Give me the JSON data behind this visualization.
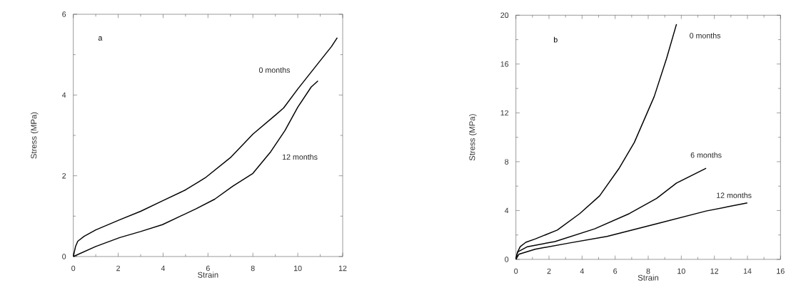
{
  "chart_data": [
    {
      "type": "line",
      "xlabel": "Strain",
      "ylabel": "Stress (MPa)",
      "annotations": [
        "a"
      ],
      "xlim": [
        0,
        12
      ],
      "ylim": [
        0,
        6
      ],
      "xticks": [
        0,
        2,
        4,
        6,
        8,
        10,
        12
      ],
      "yticks": [
        0,
        2,
        4,
        6
      ],
      "series": [
        {
          "name": "0 months",
          "color": "#000000",
          "x": [
            0,
            0.1,
            0.2,
            0.48,
            1,
            2.07,
            3,
            3.97,
            5,
            5.88,
            7,
            8.0,
            9.0,
            9.37,
            10,
            10.5,
            11,
            11.5,
            11.76
          ],
          "values": [
            0,
            0.25,
            0.38,
            0.5,
            0.66,
            0.91,
            1.12,
            1.38,
            1.65,
            1.95,
            2.45,
            3.03,
            3.5,
            3.68,
            4.15,
            4.5,
            4.85,
            5.2,
            5.42
          ]
        },
        {
          "name": "12 months",
          "color": "#000000",
          "x": [
            0,
            1,
            2.07,
            3,
            3.97,
            5.46,
            6.3,
            7.1,
            8.0,
            8.8,
            9.43,
            10,
            10.6,
            10.9
          ],
          "values": [
            0,
            0.25,
            0.47,
            0.62,
            0.79,
            1.18,
            1.42,
            1.74,
            2.06,
            2.6,
            3.12,
            3.7,
            4.2,
            4.35
          ]
        }
      ]
    },
    {
      "type": "line",
      "xlabel": "Strain",
      "ylabel": "Stress (MPa)",
      "annotations": [
        "b"
      ],
      "xlim": [
        0,
        16
      ],
      "ylim": [
        0,
        20
      ],
      "xticks": [
        0,
        2,
        4,
        6,
        8,
        10,
        12,
        14,
        16
      ],
      "yticks": [
        0,
        4,
        8,
        12,
        16,
        20
      ],
      "series": [
        {
          "name": "0 months",
          "color": "#000000",
          "x": [
            0,
            0.1,
            0.26,
            0.6,
            1.16,
            2.5,
            3.86,
            5.06,
            6.26,
            7.16,
            8.36,
            9.11,
            9.71
          ],
          "values": [
            0,
            0.6,
            1.04,
            1.4,
            1.67,
            2.4,
            3.75,
            5.2,
            7.5,
            9.58,
            13.33,
            16.46,
            19.27
          ]
        },
        {
          "name": "6 months",
          "color": "#000000",
          "x": [
            0,
            0.1,
            0.7,
            2.36,
            4.76,
            6.86,
            8.51,
            9.71,
            11.5
          ],
          "values": [
            0,
            0.6,
            1.04,
            1.46,
            2.5,
            3.75,
            5.0,
            6.25,
            7.46
          ]
        },
        {
          "name": "12 months",
          "color": "#000000",
          "x": [
            0,
            0.18,
            1.16,
            3.26,
            5.51,
            8.51,
            11.5,
            13.99
          ],
          "values": [
            0,
            0.42,
            0.83,
            1.35,
            1.88,
            2.92,
            3.96,
            4.63
          ]
        }
      ]
    }
  ]
}
